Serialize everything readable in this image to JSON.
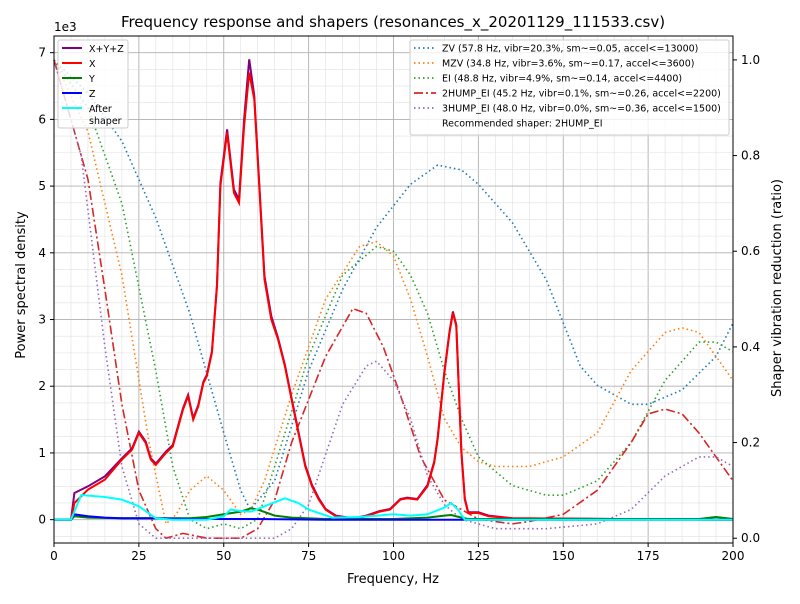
{
  "chart_data": {
    "type": "line",
    "title": "Frequency response and shapers (resonances_x_20201129_111533.csv)",
    "xlabel": "Frequency, Hz",
    "ylabel": "Power spectral density",
    "ylabel_right": "Shaper vibration reduction (ratio)",
    "y_offset_label": "1e3",
    "xlim": [
      0,
      200
    ],
    "ylim": [
      -0.35,
      7.25
    ],
    "ylim_right": [
      -0.01,
      1.05
    ],
    "xticks": [
      "0",
      "25",
      "50",
      "75",
      "100",
      "125",
      "150",
      "175",
      "200"
    ],
    "yticks": [
      "0",
      "1",
      "2",
      "3",
      "4",
      "5",
      "6",
      "7"
    ],
    "yticks_right": [
      "0.0",
      "0.2",
      "0.4",
      "0.6",
      "0.8",
      "1.0"
    ],
    "grid": true,
    "legend_left_placement": "top-left",
    "legend_right_placement": "top-right",
    "psd_series": [
      {
        "name": "X+Y+Z",
        "color": "#800080",
        "style": "solid",
        "x": [
          0,
          5,
          6,
          10,
          15,
          20,
          23,
          25,
          27,
          28.5,
          30,
          33,
          35,
          38,
          39.5,
          41,
          42.5,
          44,
          45,
          46.5,
          48,
          49,
          51,
          53,
          54.5,
          56,
          57.5,
          59,
          61,
          62,
          64,
          66,
          68,
          70,
          72,
          74,
          76,
          78,
          80,
          83,
          88,
          92,
          96,
          99,
          102,
          104,
          107,
          110,
          112,
          113,
          115,
          116.5,
          117.5,
          118.5,
          120,
          121,
          122,
          125,
          128,
          135,
          200
        ],
        "y": [
          0,
          0,
          0.4,
          0.5,
          0.65,
          0.92,
          1.07,
          1.32,
          1.17,
          0.92,
          0.84,
          1.02,
          1.12,
          1.67,
          1.87,
          1.52,
          1.72,
          2.07,
          2.17,
          2.52,
          3.52,
          5.05,
          5.85,
          4.95,
          4.8,
          6.0,
          6.9,
          6.35,
          4.55,
          3.65,
          3.05,
          2.72,
          2.32,
          1.82,
          1.32,
          0.82,
          0.52,
          0.32,
          0.16,
          0.06,
          0.02,
          0.06,
          0.13,
          0.16,
          0.31,
          0.33,
          0.31,
          0.52,
          0.87,
          1.22,
          2.22,
          2.82,
          3.12,
          2.92,
          1.02,
          0.32,
          0.11,
          0.11,
          0.06,
          0.02,
          0
        ]
      },
      {
        "name": "X",
        "color": "#ff0000",
        "style": "solid",
        "x": [
          0,
          5,
          6,
          10,
          15,
          20,
          23,
          25,
          27,
          28.5,
          30,
          33,
          35,
          38,
          39.5,
          41,
          42.5,
          44,
          45,
          46.5,
          48,
          49,
          51,
          53,
          54.5,
          56,
          57.5,
          59,
          61,
          62,
          64,
          66,
          68,
          70,
          72,
          74,
          76,
          78,
          80,
          83,
          88,
          92,
          96,
          99,
          102,
          104,
          107,
          110,
          112,
          113,
          115,
          116.5,
          117.5,
          118.5,
          120,
          121,
          122,
          125,
          128,
          135,
          200
        ],
        "y": [
          0,
          0,
          0.25,
          0.45,
          0.6,
          0.9,
          1.05,
          1.3,
          1.15,
          0.9,
          0.82,
          1.0,
          1.1,
          1.65,
          1.85,
          1.5,
          1.7,
          2.05,
          2.15,
          2.5,
          3.5,
          5.0,
          5.8,
          4.9,
          4.75,
          5.9,
          6.7,
          6.3,
          4.5,
          3.6,
          3.0,
          2.7,
          2.3,
          1.8,
          1.3,
          0.8,
          0.5,
          0.3,
          0.15,
          0.05,
          0.01,
          0.05,
          0.12,
          0.15,
          0.3,
          0.32,
          0.3,
          0.5,
          0.85,
          1.2,
          2.2,
          2.8,
          3.1,
          2.9,
          1.0,
          0.3,
          0.1,
          0.1,
          0.05,
          0.02,
          0
        ]
      },
      {
        "name": "Y",
        "color": "#008000",
        "style": "solid",
        "x": [
          0,
          5,
          6,
          10,
          20,
          30,
          40,
          45,
          50,
          55,
          58,
          60,
          65,
          70,
          80,
          90,
          100,
          110,
          115,
          117,
          120,
          122,
          150,
          190,
          195,
          200
        ],
        "y": [
          0,
          0,
          0.05,
          0.03,
          0.02,
          0.02,
          0.02,
          0.04,
          0.08,
          0.12,
          0.17,
          0.15,
          0.06,
          0.03,
          0.01,
          0.01,
          0.01,
          0.03,
          0.06,
          0.07,
          0.03,
          0.01,
          0.01,
          0.01,
          0.04,
          0.01
        ]
      },
      {
        "name": "Z",
        "color": "#0000ff",
        "style": "solid",
        "x": [
          0,
          5,
          6,
          10,
          15,
          20,
          30,
          40,
          50,
          60,
          80,
          120,
          200
        ],
        "y": [
          0,
          0,
          0.08,
          0.05,
          0.03,
          0.02,
          0.02,
          0.01,
          0.01,
          0.01,
          0.0,
          0.0,
          0
        ]
      },
      {
        "name": "After\nshaper",
        "color": "#00ffff",
        "style": "solid",
        "x": [
          0,
          5,
          8,
          15,
          20,
          25,
          30,
          35,
          45,
          50,
          52,
          55,
          58,
          62,
          68,
          72,
          75,
          82,
          90,
          100,
          105,
          110,
          115,
          117,
          119,
          121,
          130,
          200
        ],
        "y": [
          0,
          0,
          0.37,
          0.34,
          0.3,
          0.2,
          0.02,
          0.0,
          0.0,
          0.05,
          0.15,
          0.13,
          0.12,
          0.2,
          0.32,
          0.25,
          0.15,
          0.03,
          0.04,
          0.08,
          0.06,
          0.08,
          0.18,
          0.25,
          0.15,
          0.0,
          0,
          0
        ]
      }
    ],
    "shaper_series": [
      {
        "name": "ZV (57.8 Hz, vibr=20.3%, sm~=0.05, accel<=13000)",
        "color": "#1f77b4",
        "style": "dotted",
        "x": [
          0,
          10,
          20,
          30,
          40,
          50,
          55,
          57.8,
          65,
          75,
          85,
          95,
          105,
          113,
          120,
          125,
          135,
          145,
          150,
          155,
          160,
          170,
          175,
          185,
          195,
          200
        ],
        "y": [
          1.0,
          0.93,
          0.83,
          0.67,
          0.47,
          0.22,
          0.1,
          0.06,
          0.12,
          0.35,
          0.52,
          0.65,
          0.74,
          0.78,
          0.77,
          0.74,
          0.66,
          0.54,
          0.45,
          0.36,
          0.32,
          0.28,
          0.28,
          0.31,
          0.38,
          0.45
        ]
      },
      {
        "name": "MZV (34.8 Hz, vibr=3.6%, sm~=0.17, accel<=3600)",
        "color": "#ff7f0e",
        "style": "dotted",
        "x": [
          0,
          10,
          20,
          28,
          33,
          36,
          40,
          45,
          50,
          55,
          58,
          62,
          70,
          80,
          90,
          95,
          100,
          105,
          110,
          115,
          120,
          125,
          130,
          140,
          150,
          160,
          170,
          180,
          185,
          190,
          200
        ],
        "y": [
          1.0,
          0.85,
          0.55,
          0.2,
          0.03,
          0.05,
          0.1,
          0.13,
          0.1,
          0.05,
          0.06,
          0.12,
          0.3,
          0.5,
          0.61,
          0.62,
          0.59,
          0.5,
          0.38,
          0.25,
          0.19,
          0.16,
          0.15,
          0.15,
          0.17,
          0.22,
          0.35,
          0.43,
          0.44,
          0.43,
          0.33
        ]
      },
      {
        "name": "EI (48.8 Hz, vibr=4.9%, sm~=0.14, accel<=4400)",
        "color": "#2ca02c",
        "style": "dotted",
        "x": [
          0,
          10,
          20,
          30,
          35,
          40,
          45,
          50,
          55,
          60,
          65,
          75,
          85,
          95,
          100,
          105,
          110,
          115,
          120,
          125,
          135,
          145,
          150,
          160,
          170,
          180,
          190,
          195,
          200
        ],
        "y": [
          1.0,
          0.9,
          0.7,
          0.35,
          0.15,
          0.04,
          0.02,
          0.03,
          0.02,
          0.04,
          0.15,
          0.38,
          0.55,
          0.61,
          0.6,
          0.55,
          0.47,
          0.35,
          0.25,
          0.17,
          0.11,
          0.09,
          0.09,
          0.12,
          0.2,
          0.33,
          0.41,
          0.41,
          0.39
        ]
      },
      {
        "name": "2HUMP_EI (45.2 Hz, vibr=0.1%, sm~=0.26, accel<=2200)",
        "color": "#d62728",
        "style": "dashdot",
        "x": [
          0,
          10,
          15,
          20,
          25,
          30,
          33,
          38,
          45,
          55,
          60,
          65,
          70,
          80,
          88,
          92,
          97,
          102,
          108,
          115,
          120,
          125,
          135,
          140,
          150,
          160,
          170,
          175,
          180,
          185,
          190,
          195,
          200
        ],
        "y": [
          1.0,
          0.75,
          0.52,
          0.28,
          0.1,
          0.02,
          0.0,
          0.01,
          0.0,
          0.0,
          0.02,
          0.08,
          0.2,
          0.38,
          0.48,
          0.47,
          0.4,
          0.3,
          0.17,
          0.08,
          0.06,
          0.04,
          0.03,
          0.035,
          0.05,
          0.1,
          0.2,
          0.26,
          0.27,
          0.26,
          0.22,
          0.17,
          0.12
        ]
      },
      {
        "name": "3HUMP_EI (48.0 Hz, vibr=0.0%, sm~=0.36, accel<=1500)",
        "color": "#9467bd",
        "style": "dotted",
        "x": [
          0,
          8,
          15,
          20,
          25,
          30,
          65,
          70,
          75,
          85,
          92,
          95,
          100,
          105,
          110,
          115,
          120,
          130,
          145,
          160,
          170,
          180,
          190,
          195,
          200
        ],
        "y": [
          1.0,
          0.8,
          0.4,
          0.15,
          0.03,
          0.0,
          0.0,
          0.02,
          0.07,
          0.28,
          0.36,
          0.37,
          0.33,
          0.25,
          0.13,
          0.07,
          0.04,
          0.02,
          0.02,
          0.03,
          0.06,
          0.13,
          0.17,
          0.17,
          0.15
        ]
      }
    ],
    "recommendation": "Recommended shaper: 2HUMP_EI"
  }
}
